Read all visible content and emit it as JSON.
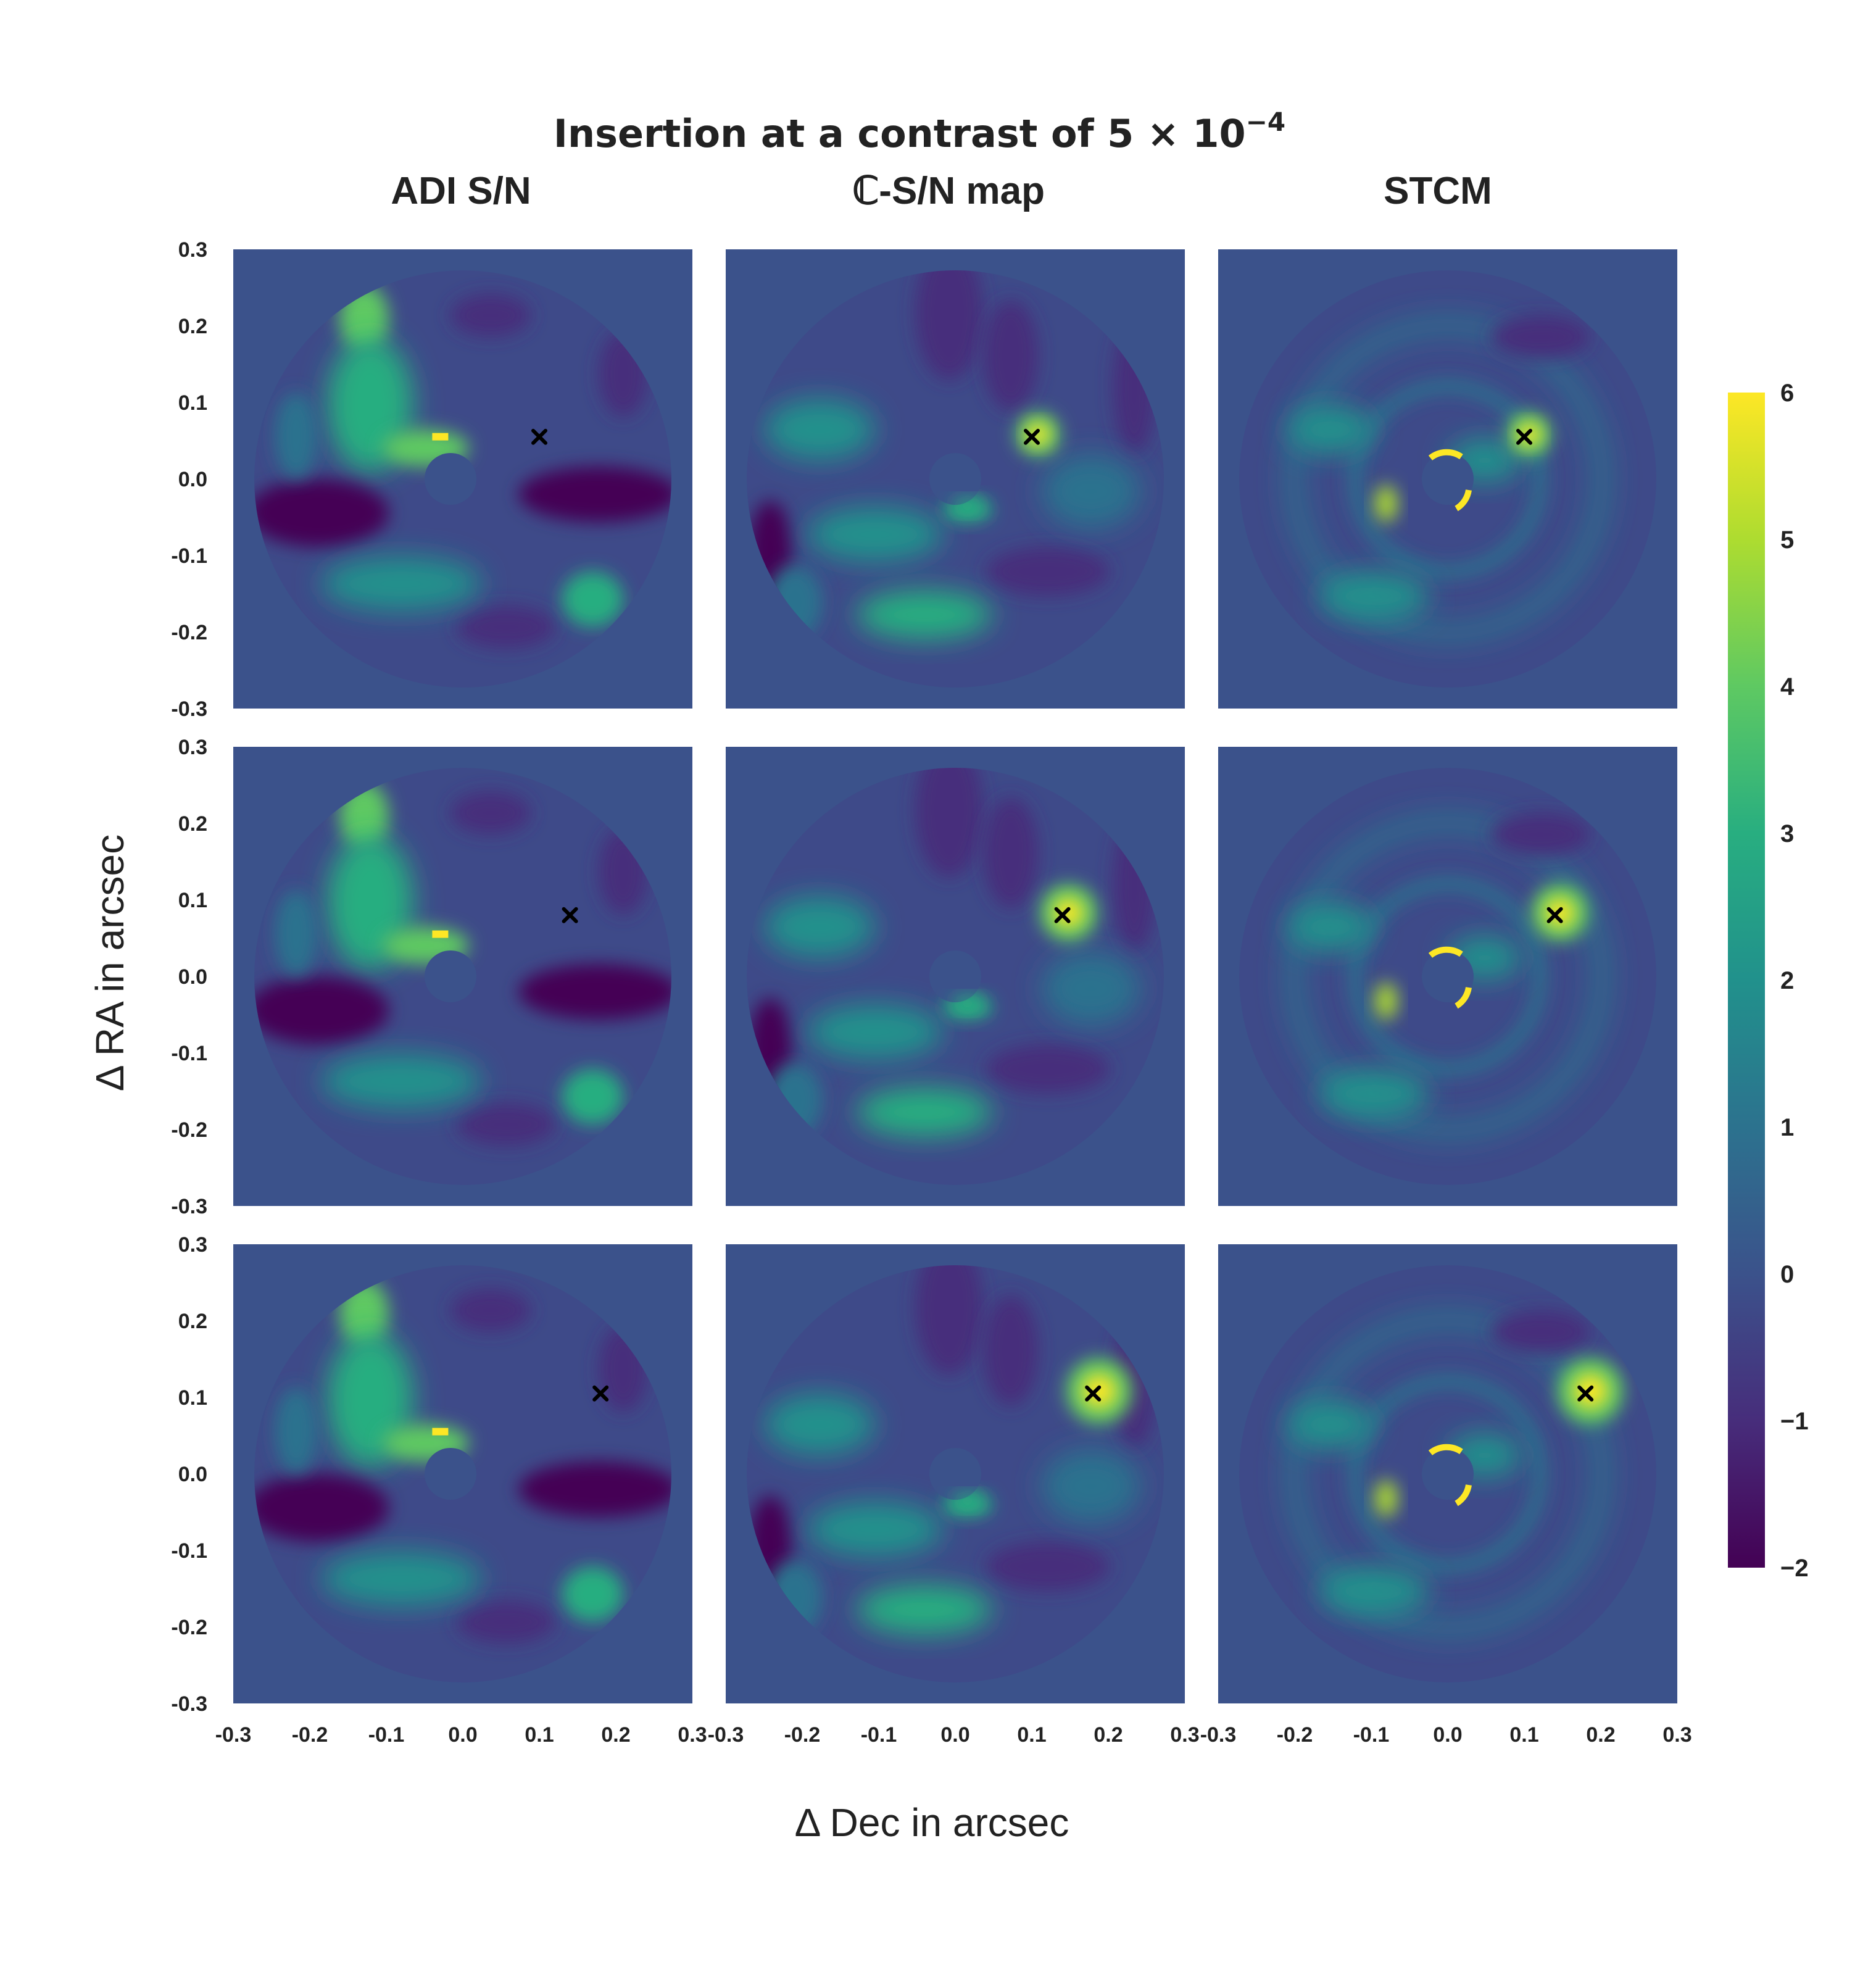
{
  "title_prefix": "Insertion at a contrast of 5 × 10",
  "title_exponent": "−4",
  "xlabel": "Δ Dec in arcsec",
  "ylabel": "Δ RA in arcsec",
  "colormap": "viridis",
  "background_color": "#3b528b",
  "marker_color": "#000000",
  "chart_data": {
    "type": "heatmap",
    "grid": "3x3",
    "columns": [
      "ADI S/N",
      "ℂ-S/N map",
      "STCM"
    ],
    "xlim": [
      -0.3,
      0.3
    ],
    "ylim": [
      -0.3,
      0.3
    ],
    "x_ticks": [
      "-0.3",
      "-0.2",
      "-0.1",
      "0.0",
      "0.1",
      "0.2",
      "0.3"
    ],
    "y_ticks": [
      "0.3",
      "0.2",
      "0.1",
      "0.0",
      "-0.1",
      "-0.2",
      "-0.3"
    ],
    "colorbar": {
      "min": -2,
      "max": 6,
      "ticks": [
        "6",
        "5",
        "4",
        "3",
        "2",
        "1",
        "0",
        "−1",
        "−2"
      ]
    },
    "injected_positions": [
      {
        "row": 0,
        "x": 0.1,
        "y": 0.055
      },
      {
        "row": 1,
        "x": 0.14,
        "y": 0.08
      },
      {
        "row": 2,
        "x": 0.18,
        "y": 0.105
      }
    ]
  }
}
